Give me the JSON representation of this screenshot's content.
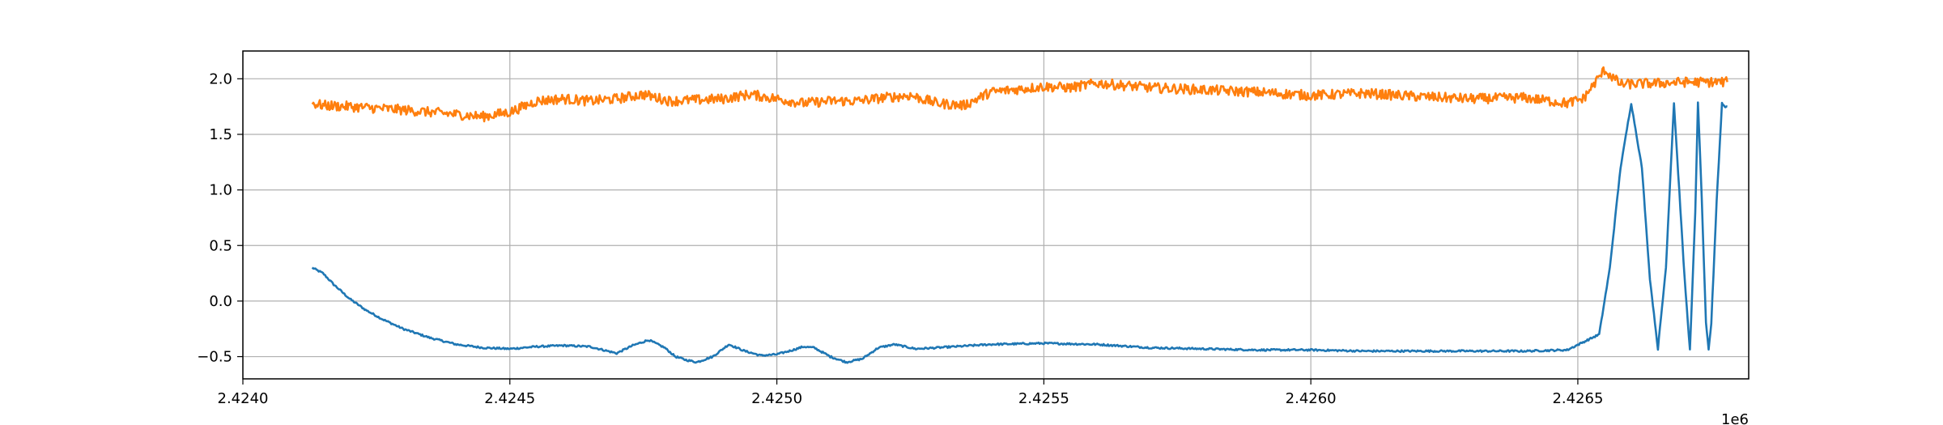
{
  "chart_data": {
    "type": "line",
    "title": "",
    "xlabel": "",
    "ylabel": "",
    "x_offset_label": "1e6",
    "xlim": [
      2424000,
      2426820
    ],
    "ylim": [
      -0.7,
      2.25
    ],
    "grid": true,
    "x_ticks": [
      {
        "value": 2424000,
        "label": "2.4240"
      },
      {
        "value": 2424500,
        "label": "2.4245"
      },
      {
        "value": 2425000,
        "label": "2.4250"
      },
      {
        "value": 2425500,
        "label": "2.4255"
      },
      {
        "value": 2426000,
        "label": "2.4260"
      },
      {
        "value": 2426500,
        "label": "2.4265"
      }
    ],
    "y_ticks": [
      {
        "value": -0.5,
        "label": "−0.5"
      },
      {
        "value": 0.0,
        "label": "0.0"
      },
      {
        "value": 0.5,
        "label": "0.5"
      },
      {
        "value": 1.0,
        "label": "1.0"
      },
      {
        "value": 1.5,
        "label": "1.5"
      },
      {
        "value": 2.0,
        "label": "2.0"
      }
    ],
    "series": [
      {
        "color": "#1f77b4",
        "noise": 0.008,
        "x": [
          2424130,
          2424150,
          2424170,
          2424200,
          2424230,
          2424260,
          2424300,
          2424350,
          2424400,
          2424450,
          2424500,
          2424550,
          2424600,
          2424650,
          2424700,
          2424730,
          2424760,
          2424790,
          2424810,
          2424830,
          2424850,
          2424880,
          2424910,
          2424940,
          2424970,
          2425000,
          2425030,
          2425050,
          2425070,
          2425100,
          2425130,
          2425160,
          2425190,
          2425220,
          2425260,
          2425300,
          2425400,
          2425500,
          2425600,
          2425700,
          2425800,
          2425900,
          2426000,
          2426100,
          2426200,
          2426300,
          2426400,
          2426480,
          2426540,
          2426560,
          2426580,
          2426600,
          2426620,
          2426635,
          2426650,
          2426665,
          2426680,
          2426700,
          2426710,
          2426720,
          2426725,
          2426730,
          2426740,
          2426745,
          2426750,
          2426760,
          2426770,
          2426775,
          2426780
        ],
        "y": [
          0.3,
          0.25,
          0.15,
          0.02,
          -0.08,
          -0.16,
          -0.25,
          -0.33,
          -0.39,
          -0.42,
          -0.43,
          -0.41,
          -0.4,
          -0.41,
          -0.47,
          -0.4,
          -0.35,
          -0.42,
          -0.5,
          -0.53,
          -0.55,
          -0.5,
          -0.39,
          -0.45,
          -0.49,
          -0.48,
          -0.44,
          -0.41,
          -0.42,
          -0.5,
          -0.55,
          -0.52,
          -0.42,
          -0.39,
          -0.43,
          -0.42,
          -0.39,
          -0.38,
          -0.39,
          -0.42,
          -0.43,
          -0.44,
          -0.44,
          -0.45,
          -0.45,
          -0.45,
          -0.45,
          -0.44,
          -0.3,
          0.3,
          1.2,
          1.78,
          1.2,
          0.2,
          -0.43,
          0.3,
          1.78,
          0.2,
          -0.44,
          0.8,
          1.78,
          1.2,
          -0.2,
          -0.44,
          -0.2,
          0.9,
          1.78,
          1.75,
          1.75
        ]
      },
      {
        "color": "#ff7f0e",
        "noise": 0.045,
        "x": [
          2424130,
          2424150,
          2424200,
          2424300,
          2424400,
          2424450,
          2424500,
          2424550,
          2424600,
          2424650,
          2424700,
          2424750,
          2424800,
          2424900,
          2424950,
          2425000,
          2425050,
          2425100,
          2425150,
          2425200,
          2425250,
          2425300,
          2425350,
          2425400,
          2425500,
          2425550,
          2425600,
          2425700,
          2425800,
          2425900,
          2426000,
          2426100,
          2426200,
          2426300,
          2426400,
          2426480,
          2426510,
          2426530,
          2426550,
          2426580,
          2426650,
          2426700,
          2426780
        ],
        "y": [
          1.78,
          1.76,
          1.75,
          1.72,
          1.68,
          1.66,
          1.7,
          1.8,
          1.82,
          1.8,
          1.82,
          1.86,
          1.8,
          1.82,
          1.86,
          1.82,
          1.78,
          1.8,
          1.8,
          1.83,
          1.85,
          1.78,
          1.76,
          1.88,
          1.93,
          1.92,
          1.96,
          1.92,
          1.9,
          1.88,
          1.85,
          1.87,
          1.84,
          1.82,
          1.83,
          1.78,
          1.82,
          1.95,
          2.08,
          1.95,
          1.96,
          1.97,
          1.97
        ]
      }
    ]
  }
}
